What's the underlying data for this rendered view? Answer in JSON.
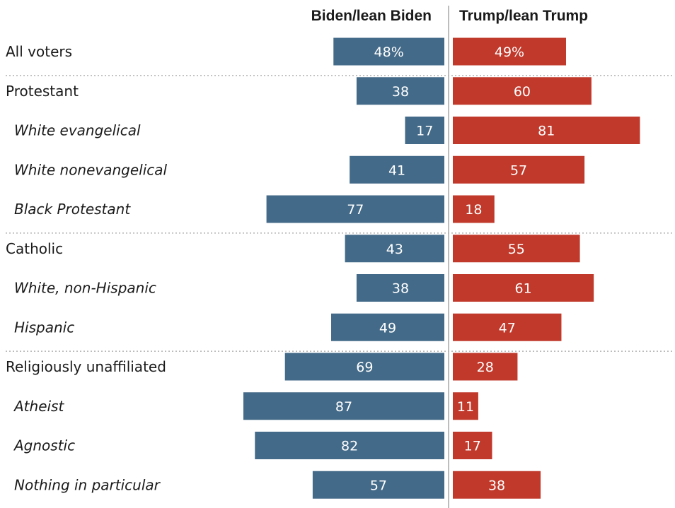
{
  "chart_data": {
    "type": "bar",
    "orientation": "horizontal-diverging",
    "xlim": [
      0,
      100
    ],
    "series": [
      {
        "name": "Biden/lean Biden",
        "color": "#436a88"
      },
      {
        "name": "Trump/lean Trump",
        "color": "#c0392b"
      }
    ],
    "rows": [
      {
        "label": "All voters",
        "biden": 48,
        "trump": 49,
        "biden_label": "48%",
        "trump_label": "49%",
        "indent": false,
        "divider_after": true
      },
      {
        "label": "Protestant",
        "biden": 38,
        "trump": 60,
        "biden_label": "38",
        "trump_label": "60",
        "indent": false,
        "divider_after": false
      },
      {
        "label": "White evangelical",
        "biden": 17,
        "trump": 81,
        "biden_label": "17",
        "trump_label": "81",
        "indent": true,
        "divider_after": false
      },
      {
        "label": "White nonevangelical",
        "biden": 41,
        "trump": 57,
        "biden_label": "41",
        "trump_label": "57",
        "indent": true,
        "divider_after": false
      },
      {
        "label": "Black Protestant",
        "biden": 77,
        "trump": 18,
        "biden_label": "77",
        "trump_label": "18",
        "indent": true,
        "divider_after": true
      },
      {
        "label": "Catholic",
        "biden": 43,
        "trump": 55,
        "biden_label": "43",
        "trump_label": "55",
        "indent": false,
        "divider_after": false
      },
      {
        "label": "White, non-Hispanic",
        "biden": 38,
        "trump": 61,
        "biden_label": "38",
        "trump_label": "61",
        "indent": true,
        "divider_after": false
      },
      {
        "label": "Hispanic",
        "biden": 49,
        "trump": 47,
        "biden_label": "49",
        "trump_label": "47",
        "indent": true,
        "divider_after": true
      },
      {
        "label": "Religiously unaffiliated",
        "biden": 69,
        "trump": 28,
        "biden_label": "69",
        "trump_label": "28",
        "indent": false,
        "divider_after": false
      },
      {
        "label": "Atheist",
        "biden": 87,
        "trump": 11,
        "biden_label": "87",
        "trump_label": "11",
        "indent": true,
        "divider_after": false
      },
      {
        "label": "Agnostic",
        "biden": 82,
        "trump": 17,
        "biden_label": "82",
        "trump_label": "17",
        "indent": true,
        "divider_after": false
      },
      {
        "label": "Nothing in particular",
        "biden": 57,
        "trump": 38,
        "biden_label": "57",
        "trump_label": "38",
        "indent": true,
        "divider_after": false
      }
    ]
  }
}
